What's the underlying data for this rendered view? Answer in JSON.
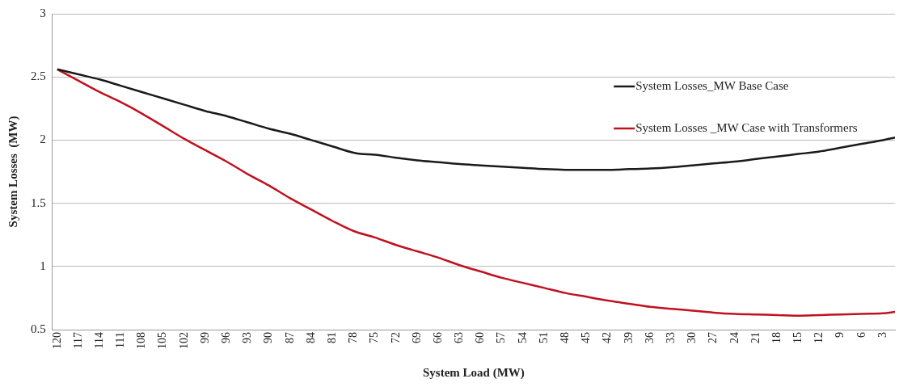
{
  "chart_data": {
    "type": "line",
    "xlabel": "System Load (MW)",
    "ylabel": "System Losses  (MW)",
    "xlim": [
      120.7,
      1.3
    ],
    "xticks": [
      120,
      117,
      114,
      111,
      108,
      105,
      102,
      99,
      96,
      93,
      90,
      87,
      84,
      81,
      78,
      75,
      72,
      69,
      66,
      63,
      60,
      57,
      54,
      51,
      48,
      45,
      42,
      39,
      36,
      33,
      30,
      27,
      24,
      21,
      18,
      15,
      12,
      9,
      6,
      3
    ],
    "ylim": [
      0.5,
      3
    ],
    "yticks": [
      0.5,
      1,
      1.5,
      2,
      2.5,
      3
    ],
    "grid": "y",
    "legend": "top right",
    "marker": "none",
    "line_style": "solid",
    "series": [
      {
        "name": "System Losses_MW Base Case",
        "color": "#1a1a1a",
        "x": [
          120,
          117,
          114,
          111,
          108,
          105,
          102,
          99,
          96,
          93,
          90,
          87,
          84,
          81,
          78,
          77,
          75,
          72,
          69,
          66,
          63,
          60,
          57,
          54,
          51,
          48,
          45,
          42,
          39,
          36,
          33,
          30,
          27,
          24,
          21,
          18,
          15,
          12,
          9,
          6,
          3,
          1.3
        ],
        "values": [
          2.56,
          2.52,
          2.48,
          2.43,
          2.38,
          2.33,
          2.28,
          2.23,
          2.19,
          2.14,
          2.09,
          2.05,
          2.0,
          1.95,
          1.9,
          1.89,
          1.885,
          1.86,
          1.84,
          1.825,
          1.81,
          1.8,
          1.79,
          1.78,
          1.77,
          1.765,
          1.765,
          1.765,
          1.77,
          1.775,
          1.785,
          1.8,
          1.815,
          1.83,
          1.85,
          1.87,
          1.89,
          1.91,
          1.94,
          1.97,
          2.0,
          2.02
        ]
      },
      {
        "name": "System Losses _MW Case with Transformers",
        "color": "#c0111f",
        "x": [
          120,
          117,
          114,
          111,
          108,
          105,
          102,
          99,
          96,
          93,
          90,
          87,
          84,
          81,
          78,
          75,
          72,
          69,
          66,
          63,
          60,
          57,
          54,
          51,
          48,
          45,
          42,
          39,
          36,
          33,
          30,
          27,
          24,
          21,
          18,
          15,
          12,
          9,
          6,
          3,
          1.3
        ],
        "values": [
          2.56,
          2.47,
          2.38,
          2.3,
          2.21,
          2.11,
          2.01,
          1.92,
          1.83,
          1.73,
          1.64,
          1.54,
          1.45,
          1.36,
          1.28,
          1.23,
          1.17,
          1.12,
          1.07,
          1.01,
          0.96,
          0.91,
          0.87,
          0.83,
          0.79,
          0.76,
          0.73,
          0.705,
          0.68,
          0.665,
          0.65,
          0.635,
          0.625,
          0.62,
          0.615,
          0.61,
          0.615,
          0.62,
          0.625,
          0.63,
          0.64
        ]
      }
    ]
  }
}
